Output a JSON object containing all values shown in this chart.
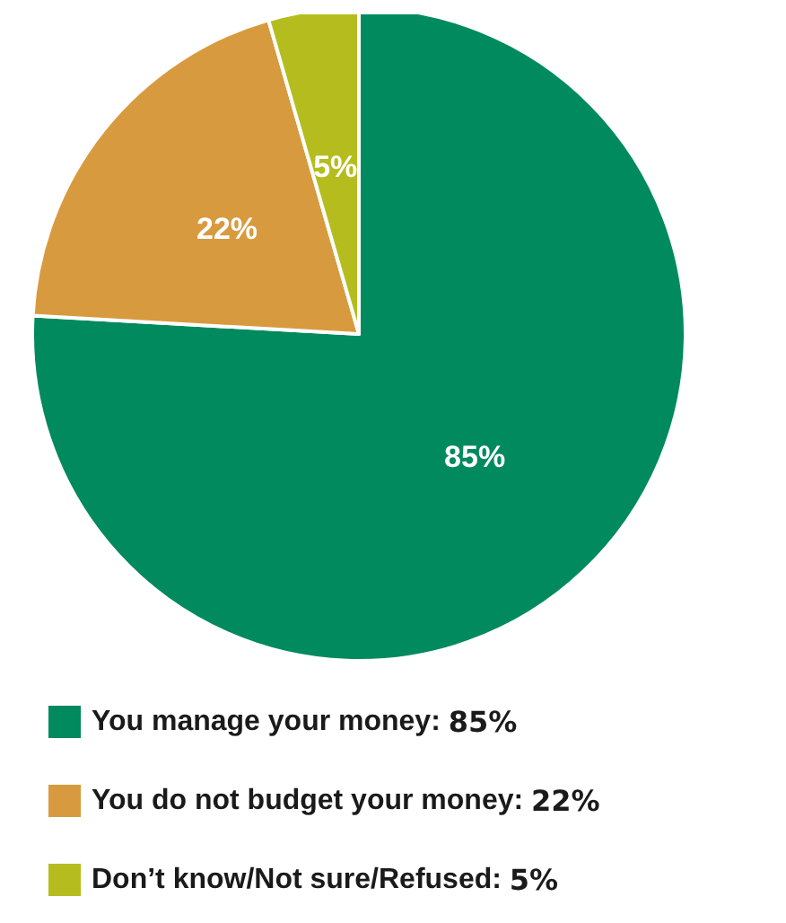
{
  "chart_data": {
    "type": "pie",
    "categories": [
      "You manage your money",
      "You do not budget your money",
      "Don’t know/Not sure/Refused"
    ],
    "values": [
      85,
      22,
      5
    ],
    "value_labels": [
      "85%",
      "22%",
      "5%"
    ],
    "colors": [
      "#008a5e",
      "#d89a3e",
      "#b5bd1e"
    ],
    "legend": "bottom"
  }
}
